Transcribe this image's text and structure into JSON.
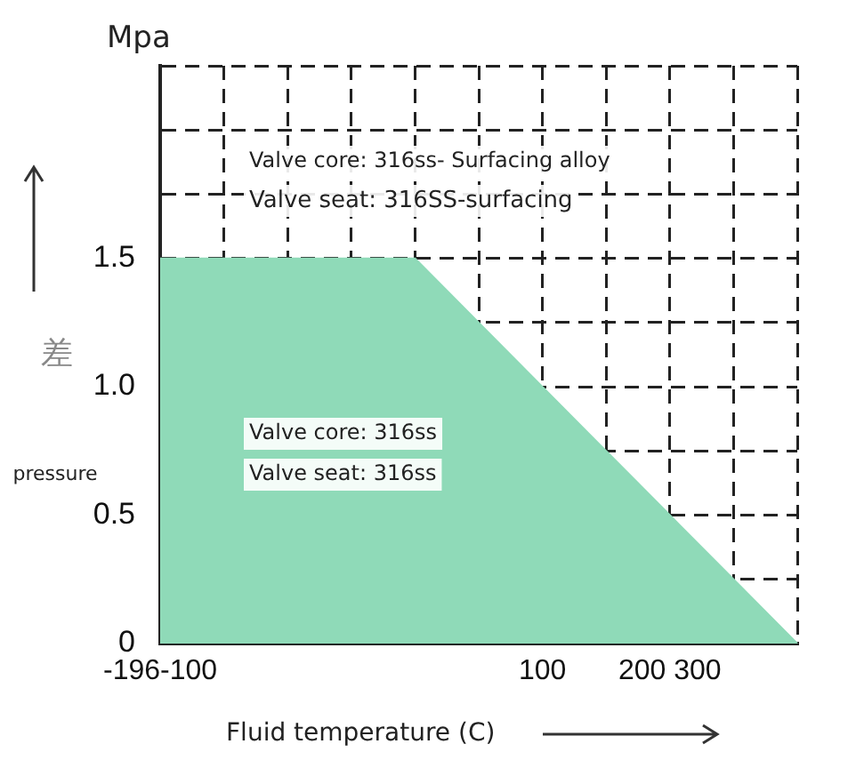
{
  "chart_data": {
    "type": "area",
    "xlabel": "Fluid temperature (C)",
    "ylabel": "pressure",
    "categories": [
      "-196-100",
      null,
      null,
      null,
      null,
      null,
      "100",
      null,
      "200 300",
      null,
      null
    ],
    "series": [
      {
        "color": "#8fdab8",
        "values": [
          1.5,
          1.5,
          1.5,
          1.5,
          1.5,
          1.25,
          1.0,
          0.75,
          0.5,
          0.25,
          0
        ]
      }
    ],
    "ylim": [
      0,
      2.25
    ],
    "yticks": [
      0,
      {
        "value": 0.25,
        "label": null
      },
      {
        "value": 0.5,
        "label": "0.5"
      },
      {
        "value": 0.75,
        "label": null
      },
      {
        "value": 1,
        "label": "1.0"
      },
      {
        "value": 1.25,
        "label": null
      },
      {
        "value": 1.5,
        "label": "1.5"
      },
      {
        "value": 1.75,
        "label": null
      },
      {
        "value": 2,
        "label": null
      },
      {
        "value": 2.25,
        "label": null
      }
    ],
    "annotations": [
      "Mpa",
      "差",
      "Valve core: 316ss- Surfacing alloy",
      "Valve seat: 316SS-surfacing",
      "Valve core: 316ss",
      "Valve seat: 316ss"
    ],
    "grid": true,
    "legend": false,
    "line_style": "dashed",
    "marker": "none"
  }
}
